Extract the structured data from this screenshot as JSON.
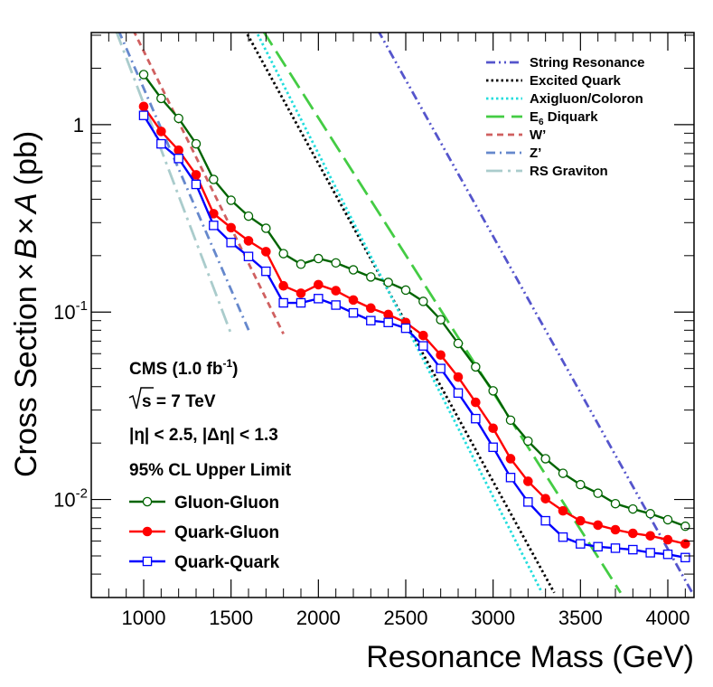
{
  "chart_data": {
    "type": "line",
    "xlabel": "Resonance Mass (GeV)",
    "ylabel": {
      "prefix": "Cross Section",
      "times1": "×",
      "B": "B",
      "times2": "×",
      "A": "A",
      "unit": "(pb)"
    },
    "xlim": [
      700,
      4150
    ],
    "ylim": [
      0.003,
      3.1
    ],
    "yscale": "log",
    "x_ticks": [
      1000,
      1500,
      2000,
      2500,
      3000,
      3500,
      4000
    ],
    "x_tick_labels": [
      "1000",
      "1500",
      "2000",
      "2500",
      "3000",
      "3500",
      "4000"
    ],
    "y_ticks": [
      {
        "value": 1,
        "base": "1",
        "exp": ""
      },
      {
        "value": 0.1,
        "base": "10",
        "exp": "-1"
      },
      {
        "value": 0.01,
        "base": "10",
        "exp": "-2"
      }
    ],
    "annotations": {
      "experiment": "CMS (1.0 fb",
      "experiment_exp": "-1",
      "experiment_close": ")",
      "sqrt_s": "s = 7 TeV",
      "cuts": "|η| < 2.5, |Δη| < 1.3",
      "limit_title": "95% CL Upper Limit"
    },
    "series": [
      {
        "name": "Gluon-Gluon",
        "color": "#006400",
        "marker": "open-circle",
        "x": [
          1000,
          1100,
          1200,
          1300,
          1400,
          1500,
          1600,
          1700,
          1800,
          1900,
          2000,
          2100,
          2200,
          2300,
          2400,
          2500,
          2600,
          2700,
          2800,
          2900,
          3000,
          3100,
          3200,
          3300,
          3400,
          3500,
          3600,
          3700,
          3800,
          3900,
          4000,
          4100
        ],
        "y": [
          1.85,
          1.38,
          1.08,
          0.79,
          0.51,
          0.395,
          0.325,
          0.28,
          0.205,
          0.18,
          0.193,
          0.183,
          0.168,
          0.154,
          0.144,
          0.131,
          0.114,
          0.091,
          0.068,
          0.051,
          0.038,
          0.0265,
          0.0205,
          0.0165,
          0.0138,
          0.012,
          0.0108,
          0.0095,
          0.0089,
          0.0084,
          0.0078,
          0.0072
        ]
      },
      {
        "name": "Quark-Gluon",
        "color": "#ff0000",
        "marker": "filled-circle",
        "x": [
          1000,
          1100,
          1200,
          1300,
          1400,
          1500,
          1600,
          1700,
          1800,
          1900,
          2000,
          2100,
          2200,
          2300,
          2400,
          2500,
          2600,
          2700,
          2800,
          2900,
          3000,
          3100,
          3200,
          3300,
          3400,
          3500,
          3600,
          3700,
          3800,
          3900,
          4000,
          4100
        ],
        "y": [
          1.25,
          0.92,
          0.73,
          0.54,
          0.335,
          0.282,
          0.24,
          0.21,
          0.138,
          0.126,
          0.14,
          0.13,
          0.116,
          0.105,
          0.097,
          0.088,
          0.075,
          0.059,
          0.045,
          0.033,
          0.024,
          0.0165,
          0.0125,
          0.0101,
          0.0087,
          0.0077,
          0.0073,
          0.0069,
          0.0066,
          0.0064,
          0.0061,
          0.0058
        ]
      },
      {
        "name": "Quark-Quark",
        "color": "#0000ff",
        "marker": "open-square",
        "x": [
          1000,
          1100,
          1200,
          1300,
          1400,
          1500,
          1600,
          1700,
          1800,
          1900,
          2000,
          2100,
          2200,
          2300,
          2400,
          2500,
          2600,
          2700,
          2800,
          2900,
          3000,
          3100,
          3200,
          3300,
          3400,
          3500,
          3600,
          3700,
          3800,
          3900,
          4000,
          4100
        ],
        "y": [
          1.12,
          0.79,
          0.66,
          0.48,
          0.29,
          0.235,
          0.198,
          0.165,
          0.112,
          0.112,
          0.118,
          0.109,
          0.099,
          0.09,
          0.088,
          0.082,
          0.066,
          0.05,
          0.037,
          0.027,
          0.019,
          0.0131,
          0.0097,
          0.0077,
          0.0063,
          0.0058,
          0.0056,
          0.0055,
          0.0054,
          0.0052,
          0.0051,
          0.0049
        ]
      }
    ],
    "theory_curves": [
      {
        "name": "String Resonance",
        "color": "#5555cc",
        "style": "dash-dot-dot",
        "x": [
          2340,
          4140
        ],
        "y": [
          3.2,
          0.00318
        ]
      },
      {
        "name": "Excited Quark",
        "color": "#000000",
        "style": "dotted",
        "x": [
          1580,
          3350
        ],
        "y": [
          3.2,
          0.00318
        ]
      },
      {
        "name": "Axigluon/Coloron",
        "color": "#22dddd",
        "style": "dotted",
        "x": [
          1640,
          3280
        ],
        "y": [
          3.2,
          0.00318
        ]
      },
      {
        "name": "E",
        "name_sub": "6",
        "name_rest": " Diquark",
        "color": "#44cc44",
        "style": "long-dash",
        "x": [
          1680,
          3730
        ],
        "y": [
          3.2,
          0.00318
        ]
      },
      {
        "name": "W’",
        "color": "#d06060",
        "style": "dashed",
        "x": [
          940,
          1800
        ],
        "y": [
          3.2,
          0.0765
        ]
      },
      {
        "name": "Z’",
        "color": "#6688cc",
        "style": "dash-dot",
        "x": [
          855,
          1610
        ],
        "y": [
          3.2,
          0.0765
        ]
      },
      {
        "name": "RS Graviton",
        "color": "#aacccc",
        "style": "long-dash-dot",
        "x": [
          840,
          1500
        ],
        "y": [
          3.2,
          0.0765
        ]
      }
    ]
  }
}
